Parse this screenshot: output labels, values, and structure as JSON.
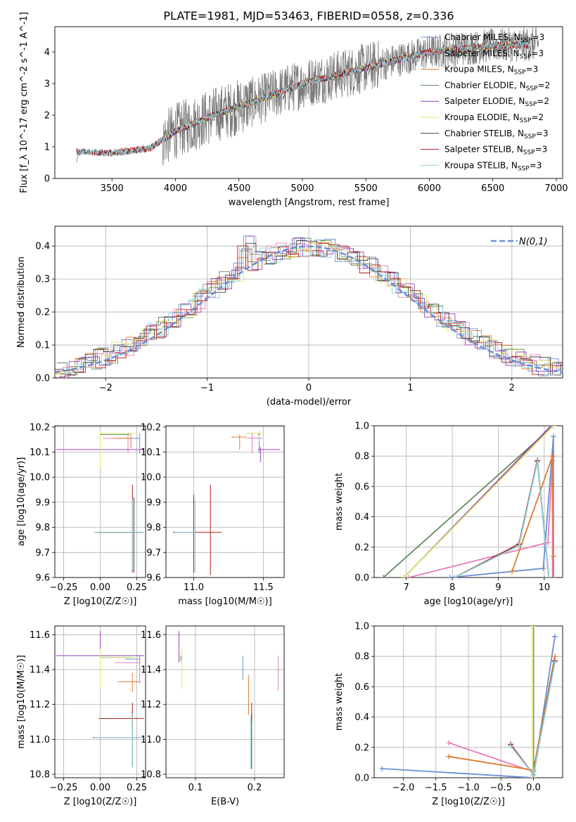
{
  "figure": {
    "title": "PLATE=1981, MJD=53463, FIBERID=0558, z=0.336"
  },
  "colors": {
    "Chabrier MILES": "#6a8fd6",
    "Salpeter MILES": "#e87bb8",
    "Kroupa MILES": "#e07b2e",
    "Chabrier ELODIE": "#5f8a5f",
    "Salpeter ELODIE": "#9c3fb5",
    "Kroupa ELODIE": "#d6e86a",
    "Chabrier STELIB": "#3c3c3c",
    "Salpeter STELIB": "#b01c1c",
    "Kroupa STELIB": "#8fd4dc",
    "data": "#7a7a7a",
    "normal": "#6a8fd6"
  },
  "chart_data": [
    {
      "type": "line",
      "title": "PLATE=1981, MJD=53463, FIBERID=0558, z=0.336",
      "xlabel": "wavelength [Angstrom, rest frame]",
      "ylabel": "Flux [f_λ 10^-17 erg cm^-2 s^-1 A^-1]",
      "xlim": [
        3050,
        7050
      ],
      "ylim": [
        0,
        4.8
      ],
      "xticks": [
        3500,
        4000,
        4500,
        5000,
        5500,
        6000,
        6500,
        7000
      ],
      "yticks": [
        0,
        1,
        2,
        3,
        4
      ],
      "grid": false,
      "legend": "top-right",
      "legend_entries": [
        {
          "name": "Chabrier MILES, N",
          "sub": "SSP",
          "suffix": "=3"
        },
        {
          "name": "Salpeter MILES, N",
          "sub": "SSP",
          "suffix": "=3"
        },
        {
          "name": "Kroupa MILES, N",
          "sub": "SSP",
          "suffix": "=3"
        },
        {
          "name": "Chabrier ELODIE, N",
          "sub": "SSP",
          "suffix": "=2"
        },
        {
          "name": "Salpeter ELODIE, N",
          "sub": "SSP",
          "suffix": "=2"
        },
        {
          "name": "Kroupa ELODIE, N",
          "sub": "SSP",
          "suffix": "=2"
        },
        {
          "name": "Chabrier STELIB, N",
          "sub": "SSP",
          "suffix": "=3"
        },
        {
          "name": "Salpeter STELIB, N",
          "sub": "SSP",
          "suffix": "=3"
        },
        {
          "name": "Kroupa STELIB, N",
          "sub": "SSP",
          "suffix": "=3"
        }
      ],
      "data_range": [
        3220,
        6860
      ],
      "continuum_points": [
        [
          3220,
          0.85
        ],
        [
          3500,
          0.8
        ],
        [
          3800,
          0.95
        ],
        [
          4000,
          1.5
        ],
        [
          4300,
          2.0
        ],
        [
          4600,
          2.4
        ],
        [
          5000,
          3.0
        ],
        [
          5500,
          3.5
        ],
        [
          6000,
          4.0
        ],
        [
          6500,
          4.2
        ],
        [
          6860,
          4.25
        ]
      ],
      "model_ranges": {
        "MILES": [
          3540,
          6790
        ],
        "ELODIE": [
          3900,
          6790
        ],
        "STELIB": [
          3220,
          6790
        ]
      }
    },
    {
      "type": "line",
      "xlabel": "(data-model)/error",
      "ylabel": "Normed distribution",
      "xlim": [
        -2.5,
        2.5
      ],
      "ylim": [
        0,
        0.46
      ],
      "xticks": [
        -2,
        -1,
        0,
        1,
        2
      ],
      "yticks": [
        0.0,
        0.1,
        0.2,
        0.3,
        0.4
      ],
      "grid": true,
      "legend": "top-right",
      "normal_label": "N(0,1)",
      "bin_width": 0.1,
      "hist_base": [
        0.018,
        0.02,
        0.025,
        0.03,
        0.033,
        0.038,
        0.04,
        0.06,
        0.075,
        0.07,
        0.085,
        0.09,
        0.1,
        0.11,
        0.12,
        0.14,
        0.2,
        0.23,
        0.21,
        0.25,
        0.28,
        0.25,
        0.38,
        0.29,
        0.31,
        0.34,
        0.33,
        0.35,
        0.37,
        0.36,
        0.38,
        0.37,
        0.4,
        0.39,
        0.41,
        0.4,
        0.39,
        0.37,
        0.38,
        0.36,
        0.33,
        0.31,
        0.3,
        0.28,
        0.26,
        0.23,
        0.2,
        0.17,
        0.15,
        0.13,
        0.11,
        0.1,
        0.08,
        0.06,
        0.05,
        0.045,
        0.04,
        0.03,
        0.03,
        0.025,
        0.02,
        0.02,
        0.015,
        0.015,
        0.01,
        0.015,
        0.012,
        0.015,
        0.01,
        0.008,
        0.02,
        0.015,
        0.02,
        0.015,
        0.01,
        0.01,
        0.008,
        0.01,
        0.008,
        0.005,
        0.006,
        0.005,
        0.005,
        0.004,
        0.004,
        0.004,
        0.003,
        0.003,
        0.002,
        0.002,
        0.002,
        0.002,
        0.001,
        0.001,
        0.001,
        0.001,
        0.001,
        0.001,
        0.001,
        0.001
      ]
    },
    {
      "type": "scatter",
      "xlabel": "Z [log10(Z/Z☉)]",
      "ylabel": "age  [log10(age/yr)]",
      "xlim": [
        -0.31,
        0.31
      ],
      "ylim": [
        9.6,
        10.205
      ],
      "xticks": [
        -0.25,
        0.0,
        0.25
      ],
      "yticks": [
        9.6,
        9.7,
        9.8,
        9.9,
        10.0,
        10.1,
        10.2
      ],
      "points": [
        {
          "series": "Chabrier MILES",
          "x": 0.27,
          "y": 10.155,
          "xerr": [
            0.1,
            0.0
          ],
          "yerr": [
            0.06,
            0.02
          ]
        },
        {
          "series": "Salpeter MILES",
          "x": 0.19,
          "y": 10.155,
          "xerr": [
            0.17,
            0.0
          ],
          "yerr": [
            0.06,
            0.02
          ]
        },
        {
          "series": "Kroupa MILES",
          "x": 0.21,
          "y": 10.155,
          "xerr": [
            0.11,
            0.0
          ],
          "yerr": [
            0.04,
            0.02
          ]
        },
        {
          "series": "Chabrier ELODIE",
          "x": 0.0,
          "y": 10.17,
          "xerr": [
            0.0,
            0.2
          ],
          "yerr": [
            0.02,
            0.01
          ]
        },
        {
          "series": "Salpeter ELODIE",
          "x": 0.0,
          "y": 10.11,
          "xerr": [
            0.3,
            0.3
          ],
          "yerr": [
            0.01,
            0.01
          ]
        },
        {
          "series": "Kroupa ELODIE",
          "x": 0.0,
          "y": 10.175,
          "xerr": [
            0.0,
            0.25
          ],
          "yerr": [
            0.14,
            0.01
          ]
        },
        {
          "series": "Chabrier STELIB",
          "x": 0.23,
          "y": 9.78,
          "xerr": [
            0.27,
            0.07
          ],
          "yerr": [
            0.16,
            0.14
          ]
        },
        {
          "series": "Salpeter STELIB",
          "x": 0.22,
          "y": 9.78,
          "xerr": [
            0.23,
            0.07
          ],
          "yerr": [
            0.16,
            0.19
          ]
        },
        {
          "series": "Kroupa STELIB",
          "x": 0.22,
          "y": 9.78,
          "xerr": [
            0.26,
            0.08
          ],
          "yerr": [
            0.15,
            0.13
          ]
        }
      ]
    },
    {
      "type": "scatter",
      "xlabel": "mass [log10(M/M☉)]",
      "ylabel": "",
      "xlim": [
        10.8,
        11.65
      ],
      "ylim": [
        9.6,
        10.205
      ],
      "xticks": [
        11.0,
        11.5
      ],
      "yticks": [
        9.6,
        9.7,
        9.8,
        9.9,
        10.0,
        10.1,
        10.2
      ],
      "points": [
        {
          "series": "Chabrier MILES",
          "x": 11.47,
          "y": 10.155,
          "xerr": [
            0.02,
            0.02
          ],
          "yerr": [
            0.06,
            0.02
          ]
        },
        {
          "series": "Salpeter MILES",
          "x": 11.42,
          "y": 10.155,
          "xerr": [
            0.04,
            0.03
          ],
          "yerr": [
            0.06,
            0.02
          ]
        },
        {
          "series": "Kroupa MILES",
          "x": 11.33,
          "y": 10.16,
          "xerr": [
            0.06,
            0.05
          ],
          "yerr": [
            0.05,
            0.01
          ]
        },
        {
          "series": "Chabrier ELODIE",
          "x": 11.47,
          "y": 10.17,
          "xerr": [
            0.01,
            0.01
          ],
          "yerr": [
            0.02,
            0.01
          ]
        },
        {
          "series": "Salpeter ELODIE",
          "x": 11.48,
          "y": 10.11,
          "xerr": [
            0.02,
            0.14
          ],
          "yerr": [
            0.05,
            0.01
          ]
        },
        {
          "series": "Kroupa ELODIE",
          "x": 11.47,
          "y": 10.175,
          "xerr": [
            0.1,
            0.03
          ],
          "yerr": [
            0.03,
            0.01
          ]
        },
        {
          "series": "Chabrier STELIB",
          "x": 11.0,
          "y": 9.78,
          "xerr": [
            0.15,
            0.02
          ],
          "yerr": [
            0.16,
            0.15
          ]
        },
        {
          "series": "Salpeter STELIB",
          "x": 11.12,
          "y": 9.78,
          "xerr": [
            0.12,
            0.08
          ],
          "yerr": [
            0.17,
            0.19
          ]
        },
        {
          "series": "Kroupa STELIB",
          "x": 11.01,
          "y": 9.78,
          "xerr": [
            0.15,
            0.0
          ],
          "yerr": [
            0.16,
            0.13
          ]
        }
      ]
    },
    {
      "type": "line",
      "xlabel": "age  [log10(age/yr)]",
      "ylabel": "mass weight",
      "xlim": [
        6.3,
        10.4
      ],
      "ylim": [
        0,
        1.0
      ],
      "xticks": [
        7,
        8,
        9,
        10
      ],
      "yticks": [
        0.0,
        0.2,
        0.4,
        0.6,
        0.8,
        1.0
      ],
      "grid": true,
      "series": [
        {
          "series": "Chabrier MILES",
          "x": [
            7.95,
            9.98,
            10.2,
            10.2
          ],
          "y": [
            0.0,
            0.06,
            0.93,
            0.0
          ]
        },
        {
          "series": "Salpeter MILES",
          "x": [
            7.05,
            10.08,
            10.18,
            10.18
          ],
          "y": [
            0.0,
            0.23,
            0.77,
            0.0
          ]
        },
        {
          "series": "Kroupa MILES",
          "x": [
            9.3,
            10.18,
            10.2,
            10.2
          ],
          "y": [
            0.04,
            0.8,
            0.14,
            0.0
          ]
        },
        {
          "series": "Chabrier ELODIE",
          "x": [
            6.5,
            10.2
          ],
          "y": [
            0.0,
            1.0
          ]
        },
        {
          "series": "Salpeter ELODIE",
          "x": [
            6.95,
            10.15
          ],
          "y": [
            0.0,
            1.0
          ]
        },
        {
          "series": "Kroupa ELODIE",
          "x": [
            6.95,
            10.2
          ],
          "y": [
            0.0,
            1.0
          ]
        },
        {
          "series": "Chabrier STELIB",
          "x": [
            8.05,
            9.45,
            9.85,
            10.1
          ],
          "y": [
            0.0,
            0.22,
            0.77,
            0.0
          ]
        },
        {
          "series": "Salpeter STELIB",
          "x": [
            8.05,
            9.45,
            9.85,
            10.1
          ],
          "y": [
            0.0,
            0.22,
            0.77,
            0.0
          ]
        },
        {
          "series": "Kroupa STELIB",
          "x": [
            8.05,
            9.45,
            9.85,
            10.1
          ],
          "y": [
            0.0,
            0.21,
            0.76,
            0.0
          ]
        }
      ]
    },
    {
      "type": "scatter",
      "xlabel": "Z [log10(Z/Z☉)]",
      "ylabel": "mass [log10(M/M☉)]",
      "xlim": [
        -0.31,
        0.31
      ],
      "ylim": [
        10.78,
        11.65
      ],
      "xticks": [
        -0.25,
        0.0,
        0.25
      ],
      "yticks": [
        10.8,
        11.0,
        11.2,
        11.4,
        11.6
      ],
      "points": [
        {
          "series": "Chabrier MILES",
          "x": 0.27,
          "y": 11.46,
          "xerr": [
            0.1,
            0.0
          ],
          "yerr": [
            0.03,
            0.02
          ]
        },
        {
          "series": "Salpeter MILES",
          "x": 0.27,
          "y": 11.44,
          "xerr": [
            0.17,
            0.0
          ],
          "yerr": [
            0.12,
            0.03
          ]
        },
        {
          "series": "Kroupa MILES",
          "x": 0.22,
          "y": 11.33,
          "xerr": [
            0.1,
            0.05
          ],
          "yerr": [
            0.06,
            0.05
          ]
        },
        {
          "series": "Chabrier ELODIE",
          "x": 0.0,
          "y": 11.47,
          "xerr": [
            0.0,
            0.2
          ],
          "yerr": [
            0.02,
            0.01
          ]
        },
        {
          "series": "Salpeter ELODIE",
          "x": 0.0,
          "y": 11.48,
          "xerr": [
            0.3,
            0.3
          ],
          "yerr": [
            0.03,
            0.14
          ]
        },
        {
          "series": "Kroupa ELODIE",
          "x": 0.0,
          "y": 11.47,
          "xerr": [
            0.0,
            0.25
          ],
          "yerr": [
            0.17,
            0.05
          ]
        },
        {
          "series": "Chabrier STELIB",
          "x": 0.22,
          "y": 11.01,
          "xerr": [
            0.27,
            0.08
          ],
          "yerr": [
            0.17,
            0.15
          ]
        },
        {
          "series": "Salpeter STELIB",
          "x": 0.22,
          "y": 11.12,
          "xerr": [
            0.23,
            0.08
          ],
          "yerr": [
            0.05,
            0.09
          ]
        },
        {
          "series": "Kroupa STELIB",
          "x": 0.22,
          "y": 11.01,
          "xerr": [
            0.26,
            0.08
          ],
          "yerr": [
            0.17,
            0.14
          ]
        }
      ]
    },
    {
      "type": "scatter",
      "xlabel": "E(B-V)",
      "ylabel": "",
      "xlim": [
        0.05,
        0.25
      ],
      "ylim": [
        10.78,
        11.65
      ],
      "xticks": [
        0.1,
        0.2
      ],
      "yticks": [
        10.8,
        11.0,
        11.2,
        11.4,
        11.6
      ],
      "points": [
        {
          "series": "Chabrier MILES",
          "x": 0.18,
          "y": 11.42,
          "xerr": [
            0,
            0
          ],
          "yerr": [
            0.08,
            0.06
          ]
        },
        {
          "series": "Salpeter MILES",
          "x": 0.24,
          "y": 11.37,
          "xerr": [
            0,
            0
          ],
          "yerr": [
            0.09,
            0.11
          ]
        },
        {
          "series": "Kroupa MILES",
          "x": 0.19,
          "y": 11.25,
          "xerr": [
            0,
            0
          ],
          "yerr": [
            0.11,
            0.12
          ]
        },
        {
          "series": "Chabrier ELODIE",
          "x": 0.075,
          "y": 11.47,
          "xerr": [
            0,
            0
          ],
          "yerr": [
            0.02,
            0.01
          ]
        },
        {
          "series": "Salpeter ELODIE",
          "x": 0.072,
          "y": 11.52,
          "xerr": [
            0,
            0
          ],
          "yerr": [
            0.08,
            0.1
          ]
        },
        {
          "series": "Kroupa ELODIE",
          "x": 0.077,
          "y": 11.4,
          "xerr": [
            0,
            0
          ],
          "yerr": [
            0.11,
            0.12
          ]
        },
        {
          "series": "Chabrier STELIB",
          "x": 0.195,
          "y": 11.0,
          "xerr": [
            0,
            0
          ],
          "yerr": [
            0.17,
            0.15
          ]
        },
        {
          "series": "Salpeter STELIB",
          "x": 0.195,
          "y": 11.15,
          "xerr": [
            0,
            0
          ],
          "yerr": [
            0.05,
            0.06
          ]
        },
        {
          "series": "Kroupa STELIB",
          "x": 0.193,
          "y": 11.0,
          "xerr": [
            0,
            0
          ],
          "yerr": [
            0.17,
            0.14
          ]
        }
      ]
    },
    {
      "type": "line",
      "xlabel": "Z [log10(Z/Z☉)]",
      "ylabel": "mass weight",
      "xlim": [
        -2.45,
        0.45
      ],
      "ylim": [
        0,
        1.0
      ],
      "xticks": [
        -2.0,
        -1.5,
        -1.0,
        -0.5,
        0.0
      ],
      "yticks": [
        0.0,
        0.2,
        0.4,
        0.6,
        0.8,
        1.0
      ],
      "grid": true,
      "series": [
        {
          "series": "Chabrier MILES",
          "x": [
            -2.33,
            0.0,
            0.33,
            0.33
          ],
          "y": [
            0.06,
            0.0,
            0.93,
            0.93
          ]
        },
        {
          "series": "Salpeter MILES",
          "x": [
            -1.3,
            0.0,
            0.33
          ],
          "y": [
            0.23,
            0.04,
            0.77
          ]
        },
        {
          "series": "Kroupa MILES",
          "x": [
            -1.3,
            0.0,
            0.33
          ],
          "y": [
            0.14,
            0.05,
            0.8
          ]
        },
        {
          "series": "Chabrier ELODIE",
          "x": [
            0.0,
            0.0
          ],
          "y": [
            0.0,
            1.0
          ]
        },
        {
          "series": "Salpeter ELODIE",
          "x": [
            0.0,
            0.0
          ],
          "y": [
            0.0,
            1.0
          ]
        },
        {
          "series": "Kroupa ELODIE",
          "x": [
            -0.01,
            -0.01
          ],
          "y": [
            0.0,
            1.0
          ]
        },
        {
          "series": "Chabrier STELIB",
          "x": [
            -0.35,
            0.0,
            0.33
          ],
          "y": [
            0.22,
            0.02,
            0.77
          ]
        },
        {
          "series": "Salpeter STELIB",
          "x": [
            -0.35,
            0.0,
            0.33
          ],
          "y": [
            0.22,
            0.02,
            0.77
          ]
        },
        {
          "series": "Kroupa STELIB",
          "x": [
            -0.35,
            0.0,
            0.33
          ],
          "y": [
            0.21,
            0.02,
            0.76
          ]
        }
      ]
    }
  ]
}
